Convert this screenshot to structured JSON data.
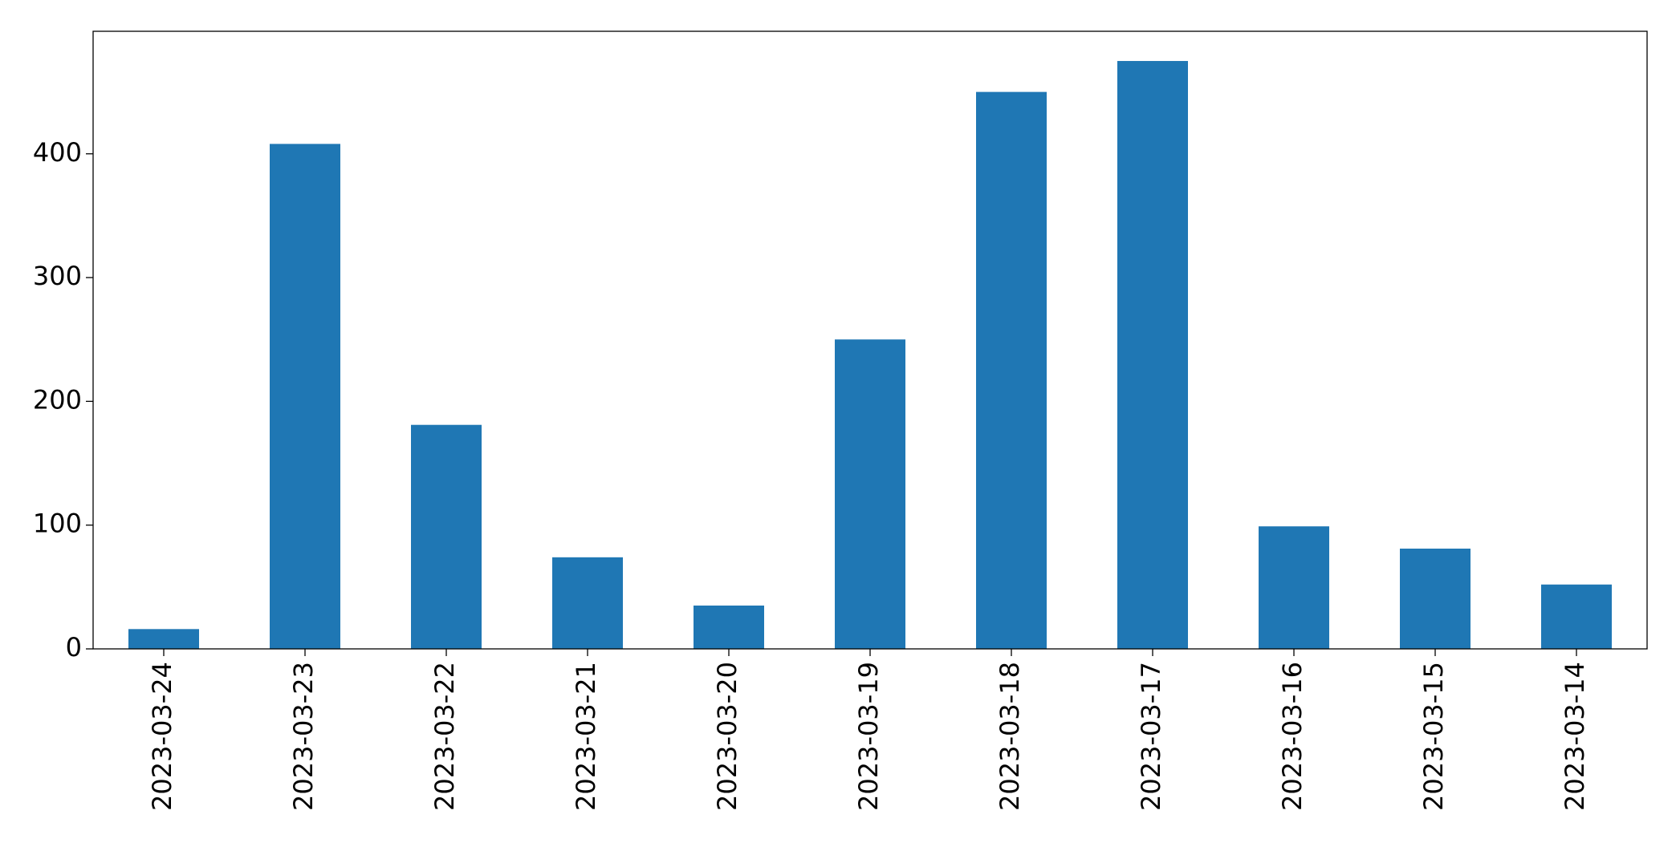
{
  "chart_data": {
    "type": "bar",
    "categories": [
      "2023-03-24",
      "2023-03-23",
      "2023-03-22",
      "2023-03-21",
      "2023-03-20",
      "2023-03-19",
      "2023-03-18",
      "2023-03-17",
      "2023-03-16",
      "2023-03-15",
      "2023-03-14"
    ],
    "values": [
      16,
      408,
      181,
      74,
      35,
      250,
      450,
      475,
      99,
      81,
      52
    ],
    "color": "#1f77b4",
    "ylim": [
      0,
      499
    ],
    "yticks": [
      0,
      100,
      200,
      300,
      400
    ],
    "grid": false
  }
}
